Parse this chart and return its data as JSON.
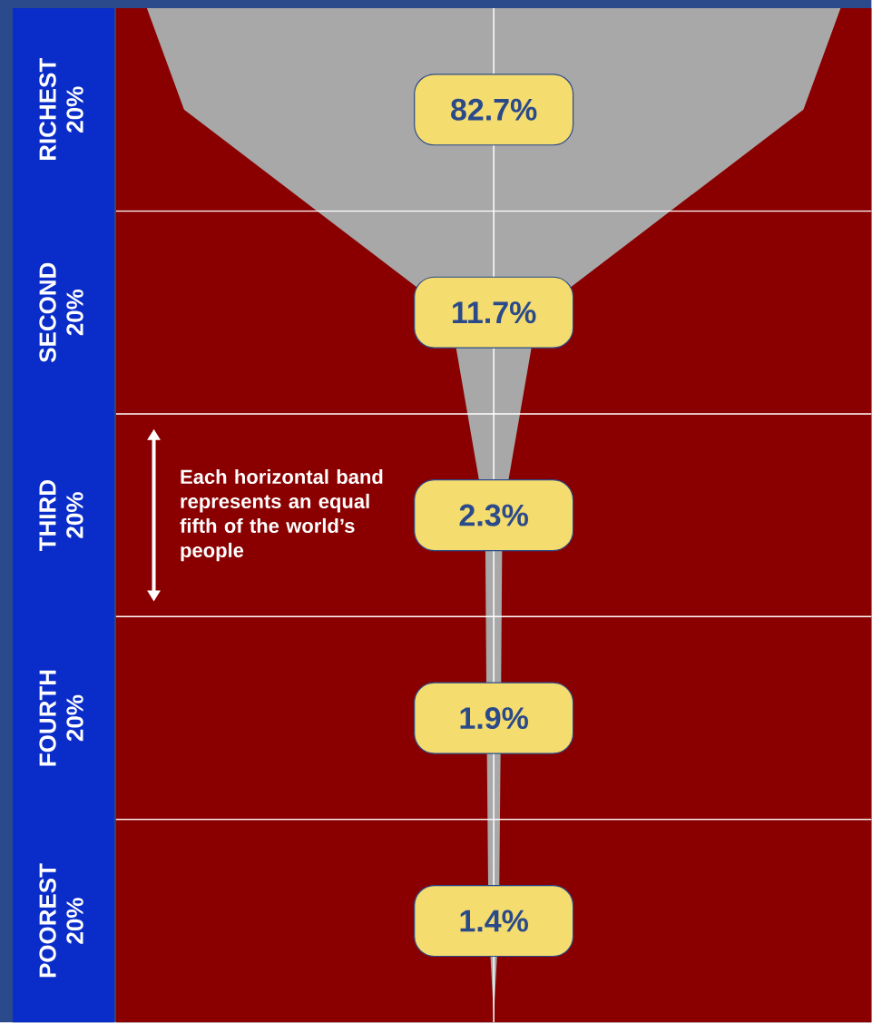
{
  "chart_data": {
    "type": "other",
    "categories": [
      "RICHEST 20%",
      "SECOND 20%",
      "THIRD 20%",
      "FOURTH 20%",
      "POOREST 20%"
    ],
    "values": [
      82.7,
      11.7,
      2.3,
      1.9,
      1.4
    ],
    "value_labels": [
      "82.7%",
      "11.7%",
      "2.3%",
      "1.9%",
      "1.4%"
    ],
    "annotations": [
      "Each horizontal band represents an equal fifth of the world’s people"
    ]
  }
}
